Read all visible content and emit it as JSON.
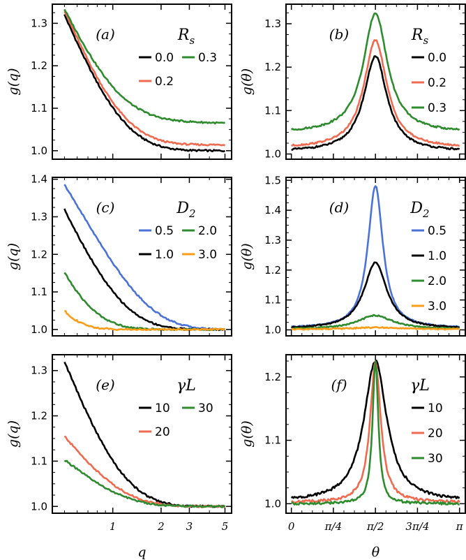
{
  "colors": {
    "black": "#000000",
    "red": "#f06a50",
    "green": "#2e8b2e",
    "blue": "#4a72d9",
    "orange": "#ff9c17"
  },
  "x_axis_labels": {
    "q": "q",
    "theta": "θ"
  },
  "chart_data": [
    {
      "type": "line",
      "id": "a",
      "panel_label": "(a)",
      "ylabel": "g(q)",
      "xscale": "log",
      "xlim": [
        0.42,
        5.5
      ],
      "ylim": [
        0.98,
        1.345
      ],
      "yticks": [
        1.0,
        1.1,
        1.2,
        1.3
      ],
      "xticks": [
        1,
        2,
        3,
        5
      ],
      "xticklabels": [
        "1",
        "2",
        "3",
        "5"
      ],
      "show_xticklabels": false,
      "legend": {
        "title": "R_s",
        "title_main": "R",
        "title_sub": "s",
        "placement": "top-right",
        "entries": [
          "0.0",
          "0.3",
          "0.2"
        ]
      },
      "series": [
        {
          "name": "0.0",
          "color": "#000000",
          "model": "q",
          "g0": 1.32,
          "base": 1.0,
          "rate": 2.3
        },
        {
          "name": "0.2",
          "color": "#f06a50",
          "model": "q",
          "g0": 1.33,
          "base": 1.014,
          "rate": 2.3
        },
        {
          "name": "0.3",
          "color": "#2e8b2e",
          "model": "q",
          "g0": 1.333,
          "base": 1.072,
          "rate": 2.4,
          "tail": -0.006
        }
      ]
    },
    {
      "type": "line",
      "id": "b",
      "panel_label": "(b)",
      "ylabel": "g(θ)",
      "xscale": "linear",
      "xlim": [
        -0.1,
        3.25
      ],
      "ylim": [
        0.988,
        1.345
      ],
      "yticks": [
        1.0,
        1.1,
        1.2,
        1.3
      ],
      "xticks": [
        0,
        0.785,
        1.571,
        2.356,
        3.142
      ],
      "xticklabels": [
        "0",
        "π/4",
        "π/2",
        "3π/4",
        "π"
      ],
      "show_xticklabels": false,
      "legend": {
        "title": "R_s",
        "title_main": "R",
        "title_sub": "s",
        "placement": "top-right",
        "entries": [
          "0.0",
          "0.2",
          "0.3"
        ]
      },
      "series": [
        {
          "name": "0.0",
          "color": "#000000",
          "model": "theta",
          "base": 1.005,
          "peak": 1.225,
          "width": 0.26
        },
        {
          "name": "0.2",
          "color": "#f06a50",
          "model": "theta",
          "base": 1.013,
          "peak": 1.262,
          "width": 0.26
        },
        {
          "name": "0.3",
          "color": "#2e8b2e",
          "model": "theta",
          "base": 1.048,
          "peak": 1.325,
          "width": 0.27
        }
      ]
    },
    {
      "type": "line",
      "id": "c",
      "panel_label": "(c)",
      "ylabel": "g(q)",
      "xscale": "log",
      "xlim": [
        0.42,
        5.5
      ],
      "ylim": [
        0.983,
        1.405
      ],
      "yticks": [
        1.0,
        1.1,
        1.2,
        1.3,
        1.4
      ],
      "xticks": [
        1,
        2,
        3,
        5
      ],
      "xticklabels": [
        "1",
        "2",
        "3",
        "5"
      ],
      "show_xticklabels": false,
      "legend": {
        "title": "D_2",
        "title_main": "D",
        "title_sub": "2",
        "placement": "top-right",
        "entries": [
          "0.5",
          "2.0",
          "1.0",
          "3.0"
        ]
      },
      "series": [
        {
          "name": "0.5",
          "color": "#4a72d9",
          "model": "q",
          "g0": 1.385,
          "base": 1.0,
          "rate": 1.55
        },
        {
          "name": "1.0",
          "color": "#000000",
          "model": "q",
          "g0": 1.32,
          "base": 1.0,
          "rate": 2.3
        },
        {
          "name": "2.0",
          "color": "#2e8b2e",
          "model": "q",
          "g0": 1.152,
          "base": 1.0,
          "rate": 4.2
        },
        {
          "name": "3.0",
          "color": "#ff9c17",
          "model": "q",
          "g0": 1.05,
          "base": 1.0,
          "rate": 8.0
        }
      ]
    },
    {
      "type": "line",
      "id": "d",
      "panel_label": "(d)",
      "ylabel": "g(θ)",
      "xscale": "linear",
      "xlim": [
        -0.1,
        3.25
      ],
      "ylim": [
        0.98,
        1.51
      ],
      "yticks": [
        1.0,
        1.1,
        1.2,
        1.3,
        1.4,
        1.5
      ],
      "xticks": [
        0,
        0.785,
        1.571,
        2.356,
        3.142
      ],
      "xticklabels": [
        "0",
        "π/4",
        "π/2",
        "3π/4",
        "π"
      ],
      "show_xticklabels": false,
      "legend": {
        "title": "D_2",
        "title_main": "D",
        "title_sub": "2",
        "placement": "top-right",
        "entries": [
          "0.5",
          "1.0",
          "2.0",
          "3.0"
        ]
      },
      "series": [
        {
          "name": "0.5",
          "color": "#4a72d9",
          "model": "theta",
          "base": 1.005,
          "peak": 1.482,
          "width": 0.17
        },
        {
          "name": "1.0",
          "color": "#000000",
          "model": "theta",
          "base": 1.003,
          "peak": 1.225,
          "width": 0.26
        },
        {
          "name": "2.0",
          "color": "#2e8b2e",
          "model": "theta",
          "base": 1.002,
          "peak": 1.048,
          "width": 0.4
        },
        {
          "name": "3.0",
          "color": "#ff9c17",
          "model": "theta",
          "base": 1.001,
          "peak": 1.008,
          "width": 0.6
        }
      ]
    },
    {
      "type": "line",
      "id": "e",
      "panel_label": "(e)",
      "ylabel": "g(q)",
      "xscale": "log",
      "xlim": [
        0.42,
        5.5
      ],
      "ylim": [
        0.985,
        1.335
      ],
      "yticks": [
        1.0,
        1.1,
        1.2,
        1.3
      ],
      "xlabel": "q",
      "xticks": [
        1,
        2,
        3,
        5
      ],
      "xticklabels": [
        "1",
        "2",
        "3",
        "5"
      ],
      "show_xticklabels": true,
      "legend": {
        "title": "γL",
        "placement": "top-right",
        "entries": [
          "10",
          "30",
          "20"
        ]
      },
      "series": [
        {
          "name": "10",
          "color": "#000000",
          "model": "q",
          "g0": 1.32,
          "base": 1.0,
          "rate": 2.3
        },
        {
          "name": "20",
          "color": "#f06a50",
          "model": "q",
          "g0": 1.155,
          "base": 1.0,
          "rate": 2.3
        },
        {
          "name": "30",
          "color": "#2e8b2e",
          "model": "q",
          "g0": 1.103,
          "base": 1.0,
          "rate": 2.3
        }
      ]
    },
    {
      "type": "line",
      "id": "f",
      "panel_label": "(f)",
      "ylabel": "g(θ)",
      "xscale": "linear",
      "xlim": [
        -0.1,
        3.25
      ],
      "ylim": [
        0.985,
        1.235
      ],
      "yticks": [
        1.0,
        1.1,
        1.2
      ],
      "xlabel": "θ",
      "xticks": [
        0,
        0.785,
        1.571,
        2.356,
        3.142
      ],
      "xticklabels": [
        "0",
        "π/4",
        "π/2",
        "3π/4",
        "π"
      ],
      "show_xticklabels": true,
      "legend": {
        "title": "γL",
        "placement": "top-right",
        "entries": [
          "10",
          "20",
          "30"
        ]
      },
      "series": [
        {
          "name": "10",
          "color": "#000000",
          "model": "theta",
          "base": 1.003,
          "peak": 1.225,
          "width": 0.26
        },
        {
          "name": "20",
          "color": "#f06a50",
          "model": "theta",
          "base": 1.002,
          "peak": 1.225,
          "width": 0.12
        },
        {
          "name": "30",
          "color": "#2e8b2e",
          "model": "theta",
          "base": 1.0,
          "peak": 1.225,
          "width": 0.065
        }
      ]
    }
  ]
}
